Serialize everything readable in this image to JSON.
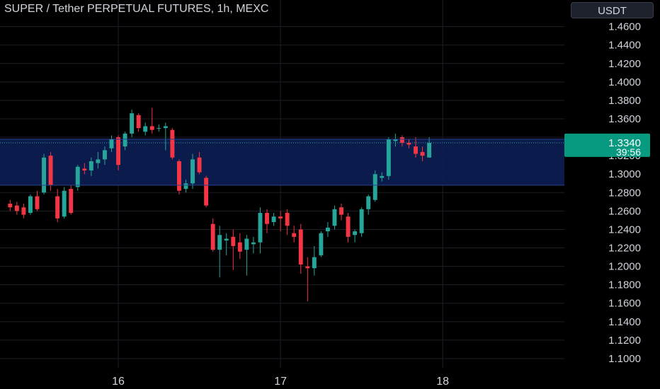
{
  "header": {
    "title": "SUPER / Tether PERPETUAL FUTURES, 1h, MEXC",
    "currency_button": "USDT"
  },
  "colors": {
    "background": "#000000",
    "up": "#26a69a",
    "down": "#f23645",
    "zone": "#0c1e52",
    "grid": "#1c1f26",
    "label_bg": "#089981",
    "axis_text": "#d1d4dc"
  },
  "price_label": {
    "price": "1.3340",
    "countdown": "39:56"
  },
  "chart_data": {
    "type": "candlestick",
    "title": "SUPER / Tether PERPETUAL FUTURES, 1h, MEXC",
    "ylim": [
      1.09,
      1.472
    ],
    "y_ticks": [
      "1.4600",
      "1.4400",
      "1.4200",
      "1.4000",
      "1.3800",
      "1.3600",
      "1.3400",
      "1.3200",
      "1.3000",
      "1.2800",
      "1.2600",
      "1.2400",
      "1.2200",
      "1.2000",
      "1.1800",
      "1.1600",
      "1.1400",
      "1.1200",
      "1.1000"
    ],
    "x_ticks": [
      {
        "label": "16",
        "index": 16
      },
      {
        "label": "17",
        "index": 40
      },
      {
        "label": "18",
        "index": 64
      }
    ],
    "x_range": [
      -1.5,
      82
    ],
    "zone": {
      "top": 1.338,
      "bottom": 1.288
    },
    "last_price": 1.334,
    "candles": [
      [
        1.268,
        1.272,
        1.26,
        1.264
      ],
      [
        1.266,
        1.27,
        1.256,
        1.26
      ],
      [
        1.264,
        1.268,
        1.252,
        1.256
      ],
      [
        1.258,
        1.278,
        1.256,
        1.276
      ],
      [
        1.276,
        1.282,
        1.26,
        1.262
      ],
      [
        1.28,
        1.322,
        1.278,
        1.318
      ],
      [
        1.32,
        1.324,
        1.282,
        1.288
      ],
      [
        1.276,
        1.284,
        1.248,
        1.252
      ],
      [
        1.254,
        1.286,
        1.252,
        1.282
      ],
      [
        1.284,
        1.288,
        1.256,
        1.258
      ],
      [
        1.286,
        1.31,
        1.282,
        1.308
      ],
      [
        1.306,
        1.312,
        1.3,
        1.304
      ],
      [
        1.304,
        1.318,
        1.298,
        1.314
      ],
      [
        1.312,
        1.324,
        1.306,
        1.316
      ],
      [
        1.316,
        1.33,
        1.31,
        1.326
      ],
      [
        1.328,
        1.342,
        1.324,
        1.338
      ],
      [
        1.34,
        1.342,
        1.304,
        1.31
      ],
      [
        1.33,
        1.346,
        1.326,
        1.344
      ],
      [
        1.344,
        1.37,
        1.34,
        1.366
      ],
      [
        1.364,
        1.366,
        1.346,
        1.35
      ],
      [
        1.346,
        1.356,
        1.342,
        1.352
      ],
      [
        1.352,
        1.372,
        1.344,
        1.348
      ],
      [
        1.35,
        1.354,
        1.346,
        1.35
      ],
      [
        1.35,
        1.356,
        1.326,
        1.352
      ],
      [
        1.348,
        1.35,
        1.316,
        1.318
      ],
      [
        1.314,
        1.316,
        1.278,
        1.282
      ],
      [
        1.284,
        1.294,
        1.28,
        1.29
      ],
      [
        1.29,
        1.322,
        1.284,
        1.316
      ],
      [
        1.318,
        1.324,
        1.3,
        1.302
      ],
      [
        1.296,
        1.298,
        1.264,
        1.266
      ],
      [
        1.246,
        1.252,
        1.216,
        1.218
      ],
      [
        1.218,
        1.244,
        1.188,
        1.234
      ],
      [
        1.228,
        1.236,
        1.212,
        1.23
      ],
      [
        1.232,
        1.24,
        1.196,
        1.222
      ],
      [
        1.226,
        1.236,
        1.208,
        1.216
      ],
      [
        1.218,
        1.234,
        1.19,
        1.23
      ],
      [
        1.224,
        1.232,
        1.214,
        1.226
      ],
      [
        1.226,
        1.264,
        1.214,
        1.258
      ],
      [
        1.258,
        1.262,
        1.236,
        1.246
      ],
      [
        1.248,
        1.258,
        1.244,
        1.254
      ],
      [
        1.254,
        1.26,
        1.238,
        1.252
      ],
      [
        1.258,
        1.262,
        1.234,
        1.244
      ],
      [
        1.236,
        1.244,
        1.226,
        1.232
      ],
      [
        1.24,
        1.246,
        1.192,
        1.202
      ],
      [
        1.2,
        1.21,
        1.162,
        1.198
      ],
      [
        1.198,
        1.222,
        1.19,
        1.21
      ],
      [
        1.212,
        1.238,
        1.21,
        1.236
      ],
      [
        1.238,
        1.248,
        1.232,
        1.242
      ],
      [
        1.244,
        1.266,
        1.24,
        1.262
      ],
      [
        1.264,
        1.268,
        1.25,
        1.256
      ],
      [
        1.254,
        1.258,
        1.226,
        1.232
      ],
      [
        1.234,
        1.24,
        1.226,
        1.238
      ],
      [
        1.236,
        1.264,
        1.232,
        1.262
      ],
      [
        1.262,
        1.278,
        1.256,
        1.276
      ],
      [
        1.272,
        1.304,
        1.27,
        1.3
      ],
      [
        1.296,
        1.302,
        1.292,
        1.298
      ],
      [
        1.298,
        1.34,
        1.294,
        1.338
      ],
      [
        1.336,
        1.344,
        1.33,
        1.338
      ],
      [
        1.34,
        1.342,
        1.33,
        1.334
      ],
      [
        1.334,
        1.338,
        1.328,
        1.332
      ],
      [
        1.33,
        1.34,
        1.318,
        1.322
      ],
      [
        1.324,
        1.33,
        1.314,
        1.32
      ],
      [
        1.318,
        1.34,
        1.318,
        1.334
      ]
    ]
  }
}
